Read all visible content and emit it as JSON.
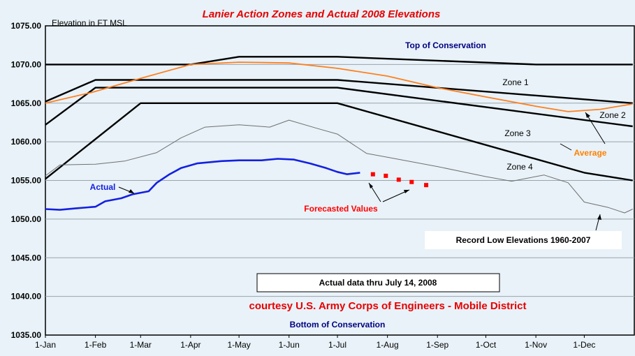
{
  "chart_data": {
    "type": "line",
    "title": "Lanier Action Zones and Actual 2008 Elevations",
    "ylabel": "Elevation in FT MSL",
    "ylim": [
      1035,
      1075
    ],
    "y_ticks": [
      "1035.00",
      "1040.00",
      "1045.00",
      "1050.00",
      "1055.00",
      "1060.00",
      "1065.00",
      "1070.00",
      "1075.00"
    ],
    "x_ticks": [
      "1-Jan",
      "1-Feb",
      "1-Mar",
      "1-Apr",
      "1-May",
      "1-Jun",
      "1-Jul",
      "1-Aug",
      "1-Sep",
      "1-Oct",
      "1-Nov",
      "1-Dec"
    ],
    "x_unit": "day of year",
    "grid": "horizontal",
    "series": [
      {
        "name": "Top of Conservation",
        "color": "#000000",
        "points": [
          [
            1,
            1070
          ],
          [
            91,
            1070
          ],
          [
            121,
            1071
          ],
          [
            182,
            1071
          ],
          [
            305,
            1070
          ],
          [
            365,
            1070
          ]
        ]
      },
      {
        "name": "Zone 1",
        "color": "#000000",
        "points": [
          [
            1,
            1065.2
          ],
          [
            32,
            1068
          ],
          [
            182,
            1068
          ],
          [
            365,
            1065
          ]
        ]
      },
      {
        "name": "Zone 2",
        "color": "#000000",
        "points": [
          [
            1,
            1062.2
          ],
          [
            32,
            1067
          ],
          [
            182,
            1067
          ],
          [
            365,
            1062
          ]
        ]
      },
      {
        "name": "Zone 3",
        "color": "#000000",
        "points": [
          [
            1,
            1055.2
          ],
          [
            60,
            1065
          ],
          [
            182,
            1065
          ],
          [
            335,
            1056
          ],
          [
            365,
            1055
          ]
        ]
      },
      {
        "name": "Average",
        "color": "#ff7f1e",
        "points": [
          [
            1,
            1065
          ],
          [
            30,
            1066.4
          ],
          [
            60,
            1068.2
          ],
          [
            91,
            1070
          ],
          [
            121,
            1070.3
          ],
          [
            152,
            1070.2
          ],
          [
            182,
            1069.5
          ],
          [
            213,
            1068.5
          ],
          [
            244,
            1067
          ],
          [
            274,
            1065.8
          ],
          [
            305,
            1064.6
          ],
          [
            325,
            1063.9
          ],
          [
            345,
            1064.2
          ],
          [
            365,
            1064.9
          ]
        ]
      },
      {
        "name": "Record Low Elevations 1960-2007",
        "color": "#707070",
        "points": [
          [
            1,
            1055.6
          ],
          [
            10,
            1057
          ],
          [
            32,
            1057.1
          ],
          [
            50,
            1057.5
          ],
          [
            70,
            1058.6
          ],
          [
            85,
            1060.5
          ],
          [
            100,
            1061.9
          ],
          [
            121,
            1062.2
          ],
          [
            140,
            1061.9
          ],
          [
            152,
            1062.8
          ],
          [
            170,
            1061.7
          ],
          [
            182,
            1061
          ],
          [
            200,
            1058.5
          ],
          [
            213,
            1058
          ],
          [
            244,
            1056.8
          ],
          [
            274,
            1055.5
          ],
          [
            290,
            1054.9
          ],
          [
            310,
            1055.7
          ],
          [
            325,
            1054.7
          ],
          [
            335,
            1052.2
          ],
          [
            350,
            1051.5
          ],
          [
            360,
            1050.8
          ],
          [
            365,
            1051.3
          ]
        ]
      },
      {
        "name": "Actual",
        "color": "#1420e0",
        "points": [
          [
            1,
            1051.3
          ],
          [
            10,
            1051.2
          ],
          [
            20,
            1051.4
          ],
          [
            32,
            1051.6
          ],
          [
            38,
            1052.3
          ],
          [
            48,
            1052.7
          ],
          [
            55,
            1053.2
          ],
          [
            65,
            1053.6
          ],
          [
            70,
            1054.7
          ],
          [
            78,
            1055.8
          ],
          [
            85,
            1056.6
          ],
          [
            95,
            1057.2
          ],
          [
            110,
            1057.5
          ],
          [
            121,
            1057.6
          ],
          [
            135,
            1057.6
          ],
          [
            145,
            1057.8
          ],
          [
            155,
            1057.7
          ],
          [
            165,
            1057.2
          ],
          [
            175,
            1056.6
          ],
          [
            182,
            1056.1
          ],
          [
            188,
            1055.8
          ],
          [
            196,
            1056
          ]
        ]
      }
    ],
    "forecasted_values": {
      "color": "#ff0000",
      "points": [
        [
          204,
          1055.8
        ],
        [
          212,
          1055.6
        ],
        [
          220,
          1055.1
        ],
        [
          228,
          1054.8
        ],
        [
          237,
          1054.4
        ]
      ]
    },
    "annotations": [
      "Top of Conservation",
      "Bottom of Conservation",
      "Zone 1",
      "Zone 2",
      "Zone 3",
      "Zone 4",
      "Actual",
      "Average",
      "Forecasted Values",
      "Record Low Elevations 1960-2007",
      "Actual data thru July 14, 2008",
      "courtesy U.S. Army Corps of Engineers - Mobile District"
    ]
  }
}
